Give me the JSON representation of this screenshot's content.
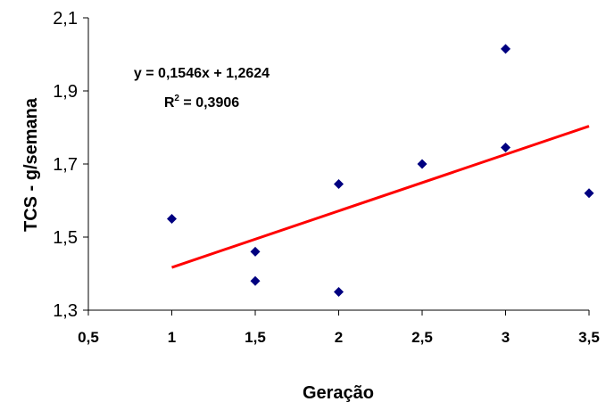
{
  "chart_data": {
    "type": "scatter",
    "xlabel": "Geração",
    "ylabel": "TCS - g/semana",
    "xlim": [
      0.5,
      3.5
    ],
    "ylim": [
      1.3,
      2.1
    ],
    "x_ticks": [
      "0,5",
      "1",
      "1,5",
      "2",
      "2,5",
      "3",
      "3,5"
    ],
    "y_ticks": [
      "1,3",
      "1,5",
      "1,7",
      "1,9",
      "2,1"
    ],
    "grid": false,
    "legend": "none",
    "marker": "diamond",
    "marker_color": "#000080",
    "points": [
      {
        "x": 1.0,
        "y": 1.55
      },
      {
        "x": 1.5,
        "y": 1.46
      },
      {
        "x": 1.5,
        "y": 1.38
      },
      {
        "x": 2.0,
        "y": 1.645
      },
      {
        "x": 2.0,
        "y": 1.35
      },
      {
        "x": 2.5,
        "y": 1.7
      },
      {
        "x": 3.0,
        "y": 2.015
      },
      {
        "x": 3.0,
        "y": 1.745
      },
      {
        "x": 3.5,
        "y": 1.62
      }
    ],
    "trendline": {
      "type": "linear",
      "slope": 0.1546,
      "intercept": 1.2624,
      "x_range": [
        1.0,
        3.5
      ],
      "color": "#ff0000"
    },
    "annotations": {
      "equation": "y = 0,1546x + 1,2624",
      "r2_prefix": "R",
      "r2_sup": "2",
      "r2_value": " = 0,3906"
    }
  }
}
